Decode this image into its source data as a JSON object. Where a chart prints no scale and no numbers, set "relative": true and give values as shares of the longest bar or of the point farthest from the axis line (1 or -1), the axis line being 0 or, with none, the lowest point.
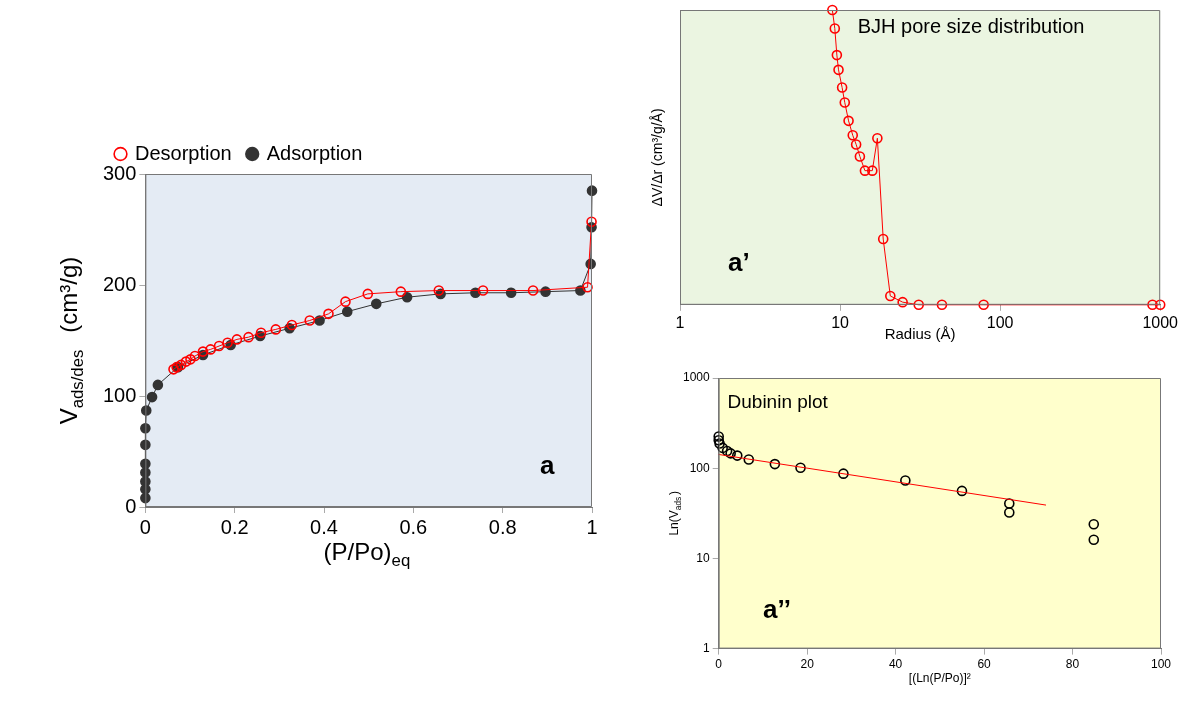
{
  "chart_data": [
    {
      "type": "line",
      "xlabel": "(P/Po)$_{eq}$",
      "ylabel": "V$_{ads/des}$  (cm³/g)",
      "xlim": [
        0,
        1
      ],
      "xticks": [
        0,
        0.2,
        0.4,
        0.6,
        0.8,
        1
      ],
      "ylim": [
        0,
        300
      ],
      "yticks": [
        0,
        100,
        200,
        300
      ],
      "grid": false,
      "legend": "top",
      "marker": "circle",
      "annotations": [
        "a"
      ],
      "series": [
        {
          "name": "Adsorption",
          "color": "#333333",
          "x": [
            0,
            0,
            0,
            0,
            0,
            0,
            0,
            0.002,
            0.015,
            0.028,
            0.073,
            0.129,
            0.191,
            0.257,
            0.323,
            0.39,
            0.452,
            0.517,
            0.586,
            0.661,
            0.739,
            0.819,
            0.896,
            0.974,
            0.997,
            0.999,
            1
          ],
          "values": [
            8,
            16,
            23,
            31,
            39,
            56,
            71,
            87,
            99,
            110,
            126,
            137,
            146,
            154,
            161,
            168,
            176,
            183,
            189,
            192,
            193,
            193,
            194,
            195,
            219,
            252,
            285
          ]
        },
        {
          "name": "Desorption",
          "color": "#ff0000",
          "x": [
            0.999,
            0.99,
            0.868,
            0.756,
            0.657,
            0.572,
            0.498,
            0.448,
            0.41,
            0.368,
            0.328,
            0.292,
            0.259,
            0.231,
            0.205,
            0.184,
            0.165,
            0.146,
            0.129,
            0.111,
            0.101,
            0.091,
            0.08,
            0.07,
            0.063
          ],
          "values": [
            257,
            198,
            195,
            195,
            195,
            194,
            192,
            185,
            174,
            168,
            164,
            160,
            157,
            153,
            151,
            148,
            145,
            142,
            140,
            136,
            133,
            131,
            128,
            126,
            124
          ]
        }
      ]
    },
    {
      "type": "line",
      "xlabel": "Radius (Å)",
      "ylabel": "ΔV/Δr (cm³/g/Å)",
      "log": "x",
      "xlim": [
        1,
        1000
      ],
      "xticks": [
        1,
        10,
        100,
        1000
      ],
      "relative": true,
      "grid": false,
      "marker": "circle",
      "annotations": [
        "BJH pore size distribution",
        "a’"
      ],
      "series": [
        {
          "color": "#ff0000",
          "x": [
            8.95,
            9.27,
            9.55,
            9.78,
            10.3,
            10.7,
            11.3,
            12.0,
            12.6,
            13.3,
            14.3,
            15.9,
            17.1,
            18.6,
            20.6,
            24.6,
            31,
            43.3,
            78.9,
            895,
            1000
          ],
          "values": [
            1,
            0.937,
            0.847,
            0.797,
            0.737,
            0.686,
            0.624,
            0.575,
            0.544,
            0.503,
            0.455,
            0.455,
            0.565,
            0.223,
            0.03,
            0.009,
            0,
            0,
            0,
            0,
            0
          ]
        }
      ]
    },
    {
      "type": "scatter",
      "xlabel": "[(Ln(P/Po)]²",
      "ylabel": "Ln(V$_{ads}$)",
      "log": "y",
      "xlim": [
        0,
        100
      ],
      "xticks": [
        0,
        20,
        40,
        60,
        80,
        100
      ],
      "ylim": [
        1,
        1000
      ],
      "yticks": [
        1,
        10,
        100,
        1000
      ],
      "grid": false,
      "marker": "circle",
      "annotations": [
        "Dubinin plot",
        "a’’"
      ],
      "series": [
        {
          "color": "#000000",
          "x": [
            0,
            0,
            0.2,
            0.9,
            1.9,
            2.7,
            4.2,
            6.8,
            12.7,
            18.5,
            28.2,
            42.2,
            55,
            65.7,
            65.7,
            84.8,
            84.8
          ],
          "values": [
            225,
            204,
            188,
            168,
            155,
            146,
            138,
            125,
            111,
            101,
            87,
            73,
            56,
            40.6,
            32.3,
            23.9,
            16.1
          ]
        },
        {
          "type": "line",
          "marker": "none",
          "color": "#ff0000",
          "x": [
            0,
            74
          ],
          "values": [
            142,
            39
          ]
        }
      ]
    }
  ]
}
